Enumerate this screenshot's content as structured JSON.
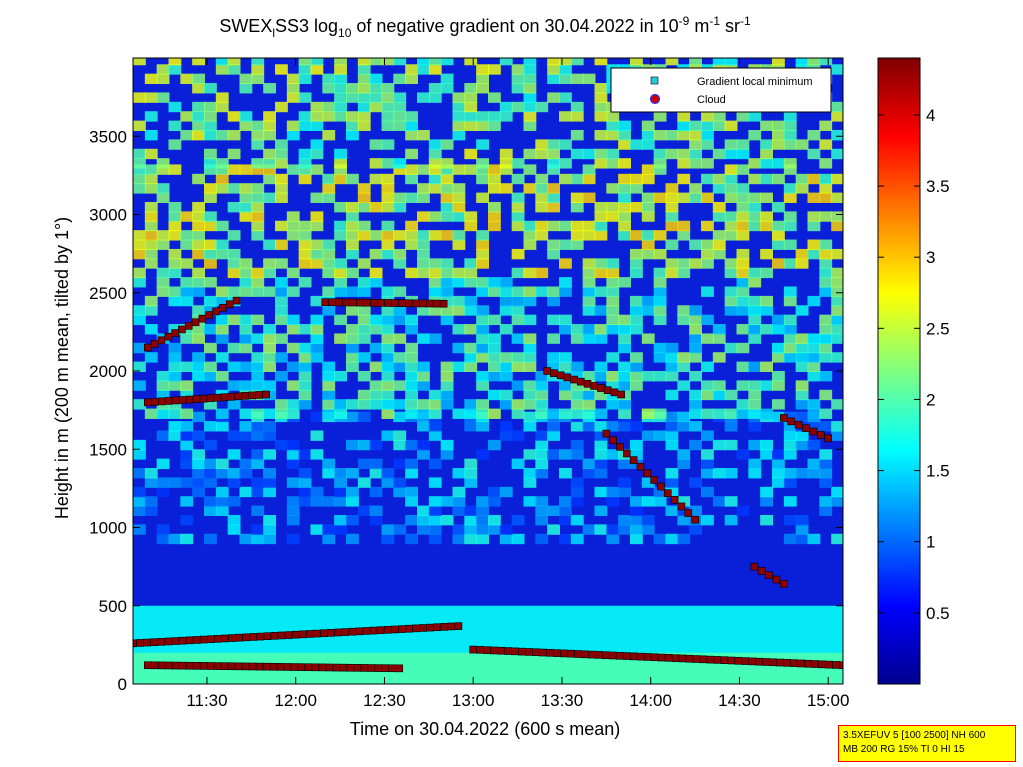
{
  "chart_data": {
    "type": "heatmap",
    "title": {
      "prefix": "SWEX",
      "sub1": "l",
      "mid1": "SS3 log",
      "sub2": "10",
      "mid2": " of negative gradient on 30.04.2022 in 10",
      "sup1": "-9",
      "mid3": " m",
      "sup2": "-1",
      "mid4": " sr",
      "sup3": "-1"
    },
    "xlabel": "Time on 30.04.2022 (600 s mean)",
    "ylabel": "Height in m (200 m mean, tilted by 1°)",
    "x_range": [
      "11:05",
      "15:05"
    ],
    "y_range": [
      0,
      4000
    ],
    "x_ticks": [
      "11:30",
      "12:00",
      "12:30",
      "13:00",
      "13:30",
      "14:00",
      "14:30",
      "15:00"
    ],
    "y_ticks": [
      0,
      500,
      1000,
      1500,
      2000,
      2500,
      3000,
      3500
    ],
    "colorbar": {
      "colormap": "jet",
      "range": [
        0,
        4.4
      ],
      "ticks": [
        0.5,
        1,
        1.5,
        2,
        2.5,
        3,
        3.5,
        4
      ]
    },
    "legend": {
      "position": "top-right",
      "entries": [
        {
          "label": "Gradient local minimum",
          "marker": "square",
          "color": "#22ccdd"
        },
        {
          "label": "Cloud",
          "marker": "circle",
          "color": "#cc0000"
        }
      ]
    },
    "layers_approx": [
      {
        "height_m": [
          120,
          100
        ],
        "time": [
          "11:10",
          "12:35"
        ]
      },
      {
        "height_m": [
          260,
          370
        ],
        "time": [
          "11:05",
          "12:55"
        ]
      },
      {
        "height_m": [
          220,
          120
        ],
        "time": [
          "13:00",
          "15:05"
        ]
      },
      {
        "height_m": [
          2150,
          2450
        ],
        "time": [
          "11:10",
          "11:40"
        ]
      },
      {
        "height_m": [
          2440,
          2430
        ],
        "time": [
          "12:10",
          "12:50"
        ]
      },
      {
        "height_m": [
          1800,
          1850
        ],
        "time": [
          "11:10",
          "11:50"
        ]
      },
      {
        "height_m": [
          2000,
          1850
        ],
        "time": [
          "13:25",
          "13:50"
        ]
      },
      {
        "height_m": [
          1600,
          1050
        ],
        "time": [
          "13:45",
          "14:15"
        ]
      },
      {
        "height_m": [
          1700,
          1570
        ],
        "time": [
          "14:45",
          "15:00"
        ]
      },
      {
        "height_m": [
          750,
          640
        ],
        "time": [
          "14:35",
          "14:45"
        ]
      }
    ]
  },
  "info_box": {
    "line1": "3.5XEFUV 5 [100 2500] NH 600",
    "line2": "MB 200 RG 15% TI 0 HI 15"
  }
}
